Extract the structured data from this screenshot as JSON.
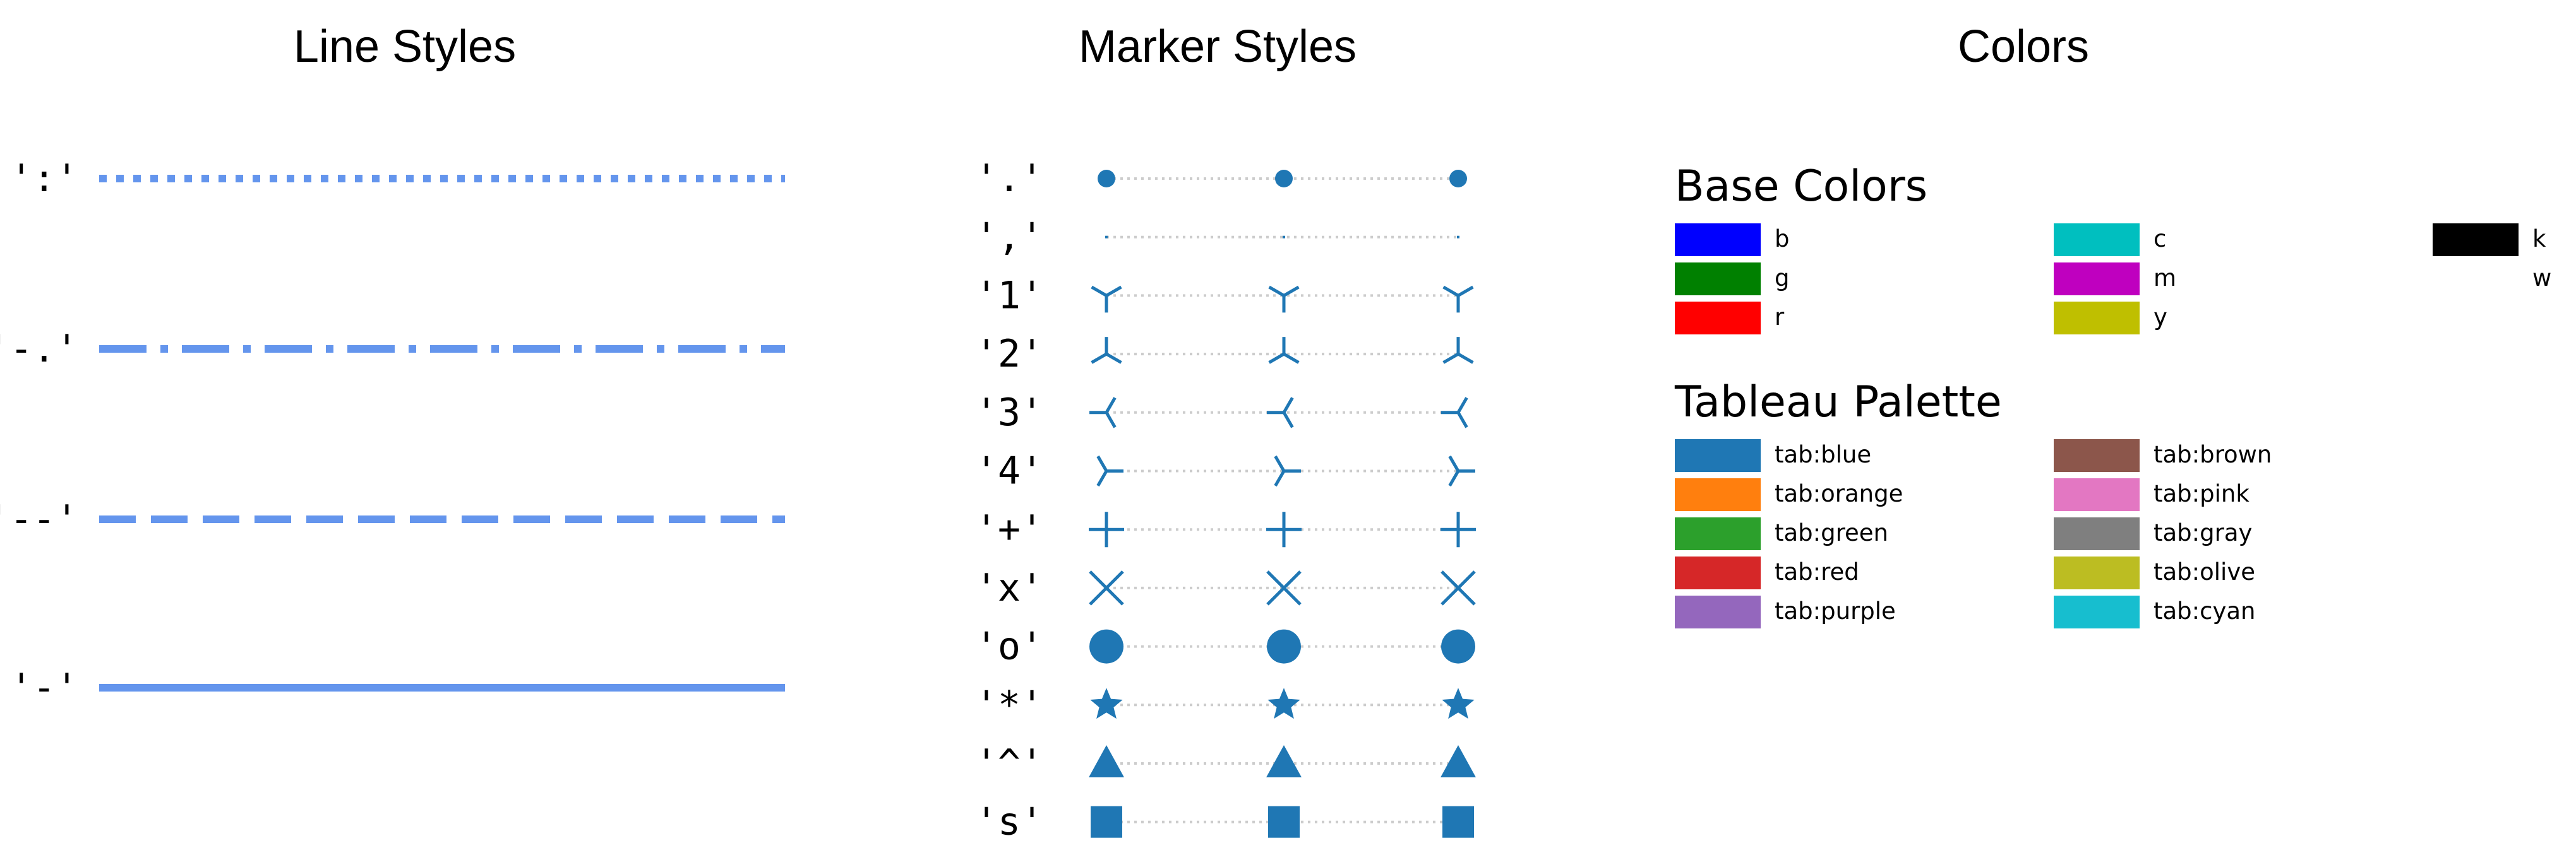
{
  "panels": {
    "line_styles": {
      "title": "Line Styles",
      "color": "#6495ed",
      "items": [
        {
          "label": "':'",
          "style": "dotted"
        },
        {
          "label": "'-.'",
          "style": "dashdot"
        },
        {
          "label": "'--'",
          "style": "dashed"
        },
        {
          "label": "'-'",
          "style": "solid"
        }
      ]
    },
    "marker_styles": {
      "title": "Marker Styles",
      "marker_color": "#1f77b4",
      "connector_color": "#cccccc",
      "items": [
        {
          "label": "'.'",
          "marker": "point"
        },
        {
          "label": "','",
          "marker": "pixel"
        },
        {
          "label": "'1'",
          "marker": "tri_down"
        },
        {
          "label": "'2'",
          "marker": "tri_up"
        },
        {
          "label": "'3'",
          "marker": "tri_left"
        },
        {
          "label": "'4'",
          "marker": "tri_right"
        },
        {
          "label": "'+'",
          "marker": "plus"
        },
        {
          "label": "'x'",
          "marker": "x"
        },
        {
          "label": "'o'",
          "marker": "circle"
        },
        {
          "label": "'*'",
          "marker": "star"
        },
        {
          "label": "'^'",
          "marker": "triangle_up"
        },
        {
          "label": "'s'",
          "marker": "square"
        }
      ]
    },
    "colors": {
      "title": "Colors",
      "base": {
        "title": "Base Colors",
        "items": [
          {
            "name": "b",
            "color": "#0000ff"
          },
          {
            "name": "g",
            "color": "#008000"
          },
          {
            "name": "r",
            "color": "#ff0000"
          },
          {
            "name": "c",
            "color": "#00bfbf"
          },
          {
            "name": "m",
            "color": "#bf00bf"
          },
          {
            "name": "y",
            "color": "#bfbf00"
          },
          {
            "name": "k",
            "color": "#000000"
          },
          {
            "name": "w",
            "color": "#ffffff"
          }
        ]
      },
      "tableau": {
        "title": "Tableau Palette",
        "items": [
          {
            "name": "tab:blue",
            "color": "#1f77b4"
          },
          {
            "name": "tab:orange",
            "color": "#ff7f0e"
          },
          {
            "name": "tab:green",
            "color": "#2ca02c"
          },
          {
            "name": "tab:red",
            "color": "#d62728"
          },
          {
            "name": "tab:purple",
            "color": "#9467bd"
          },
          {
            "name": "tab:brown",
            "color": "#8c564b"
          },
          {
            "name": "tab:pink",
            "color": "#e377c2"
          },
          {
            "name": "tab:gray",
            "color": "#7f7f7f"
          },
          {
            "name": "tab:olive",
            "color": "#bcbd22"
          },
          {
            "name": "tab:cyan",
            "color": "#17becf"
          }
        ]
      }
    }
  }
}
